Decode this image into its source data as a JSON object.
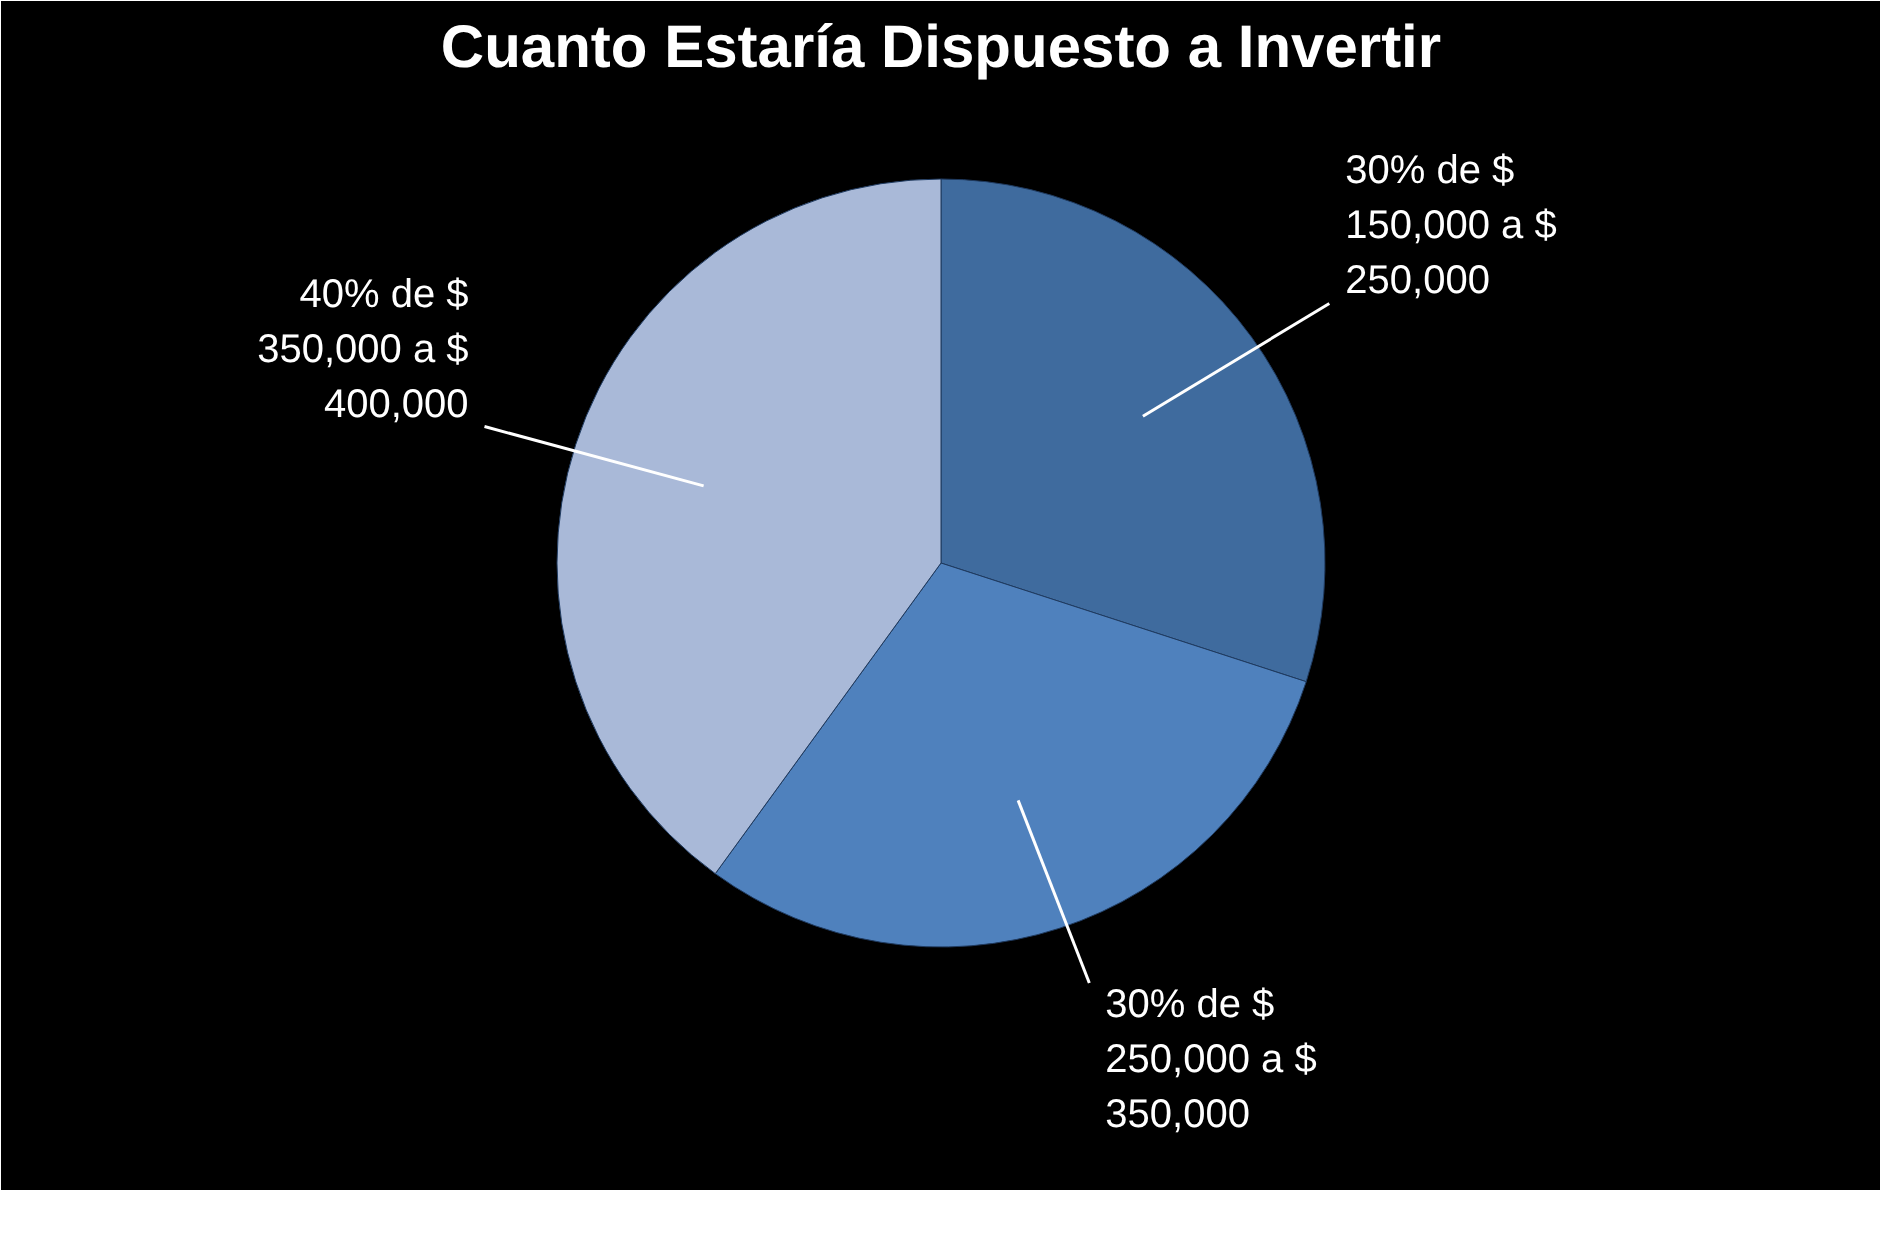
{
  "chart_data": {
    "type": "pie",
    "title": "Cuanto Estaría Dispuesto a Invertir",
    "categories": [
      "30% de $ 150,000 a $ 250,000",
      "30% de $ 250,000 a $ 350,000",
      "40% de $ 350,000 a $ 400,000"
    ],
    "values": [
      30,
      30,
      40
    ],
    "colors": [
      "#3f6b9e",
      "#4f81bd",
      "#a9b9d8"
    ]
  }
}
